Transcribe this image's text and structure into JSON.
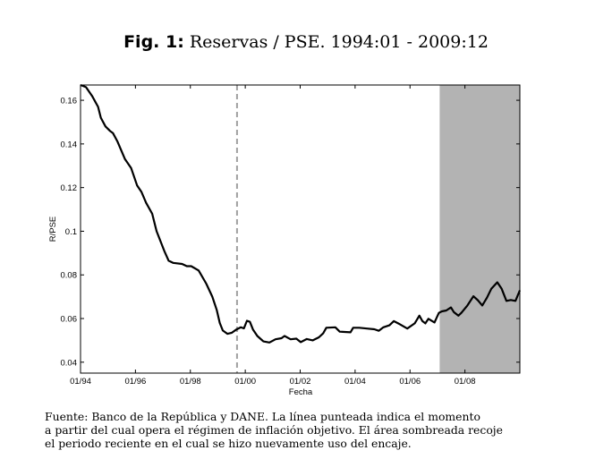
{
  "figure": {
    "label": "Fig. 1:",
    "title": "Reservas / PSE. 1994:01 - 2009:12"
  },
  "caption": {
    "lines": [
      "Fuente: Banco de la República y DANE. La línea punteada indica el momento",
      "a partir del cual opera el régimen de inflación objetivo. El área sombreada recoje",
      "el periodo reciente en el cual se hizo nuevamente uso del encaje."
    ]
  },
  "chart_data": {
    "type": "line",
    "title": "Reservas / PSE. 1994:01 - 2009:12",
    "xlabel": "Fecha",
    "ylabel": "R/PSE",
    "xlim": [
      1994.0,
      2010.0
    ],
    "ylim": [
      0.035,
      0.167
    ],
    "xticks": [
      1994,
      1996,
      1998,
      2000,
      2002,
      2004,
      2006,
      2008
    ],
    "xtick_labels": [
      "01/94",
      "01/96",
      "01/98",
      "01/00",
      "01/02",
      "01/04",
      "01/06",
      "01/08"
    ],
    "yticks": [
      0.04,
      0.06,
      0.08,
      0.1,
      0.12,
      0.14,
      0.16
    ],
    "ytick_labels": [
      "0.04",
      "0.06",
      "0.08",
      "0.1",
      "0.12",
      "0.14",
      "0.16"
    ],
    "grid": false,
    "colors": {
      "line": "#000000",
      "shade": "#b3b3b3",
      "dashed": "#a0a0a0"
    },
    "annotations": {
      "dashed_vline_x": 1999.7,
      "shaded_region_x": [
        2007.08,
        2010.0
      ]
    },
    "series": [
      {
        "name": "R/PSE",
        "x": [
          1994.0,
          1994.2,
          1994.42,
          1994.64,
          1994.74,
          1994.91,
          1995.07,
          1995.18,
          1995.35,
          1995.62,
          1995.84,
          1996.06,
          1996.22,
          1996.39,
          1996.61,
          1996.77,
          1997.05,
          1997.21,
          1997.37,
          1997.7,
          1997.87,
          1998.03,
          1998.3,
          1998.58,
          1998.8,
          1998.96,
          1999.07,
          1999.18,
          1999.35,
          1999.51,
          1999.68,
          1999.84,
          1999.95,
          2000.06,
          2000.17,
          2000.28,
          2000.44,
          2000.66,
          2000.88,
          2001.1,
          2001.32,
          2001.43,
          2001.65,
          2001.86,
          2002.02,
          2002.24,
          2002.46,
          2002.68,
          2002.84,
          2002.95,
          2003.28,
          2003.44,
          2003.83,
          2003.93,
          2004.15,
          2004.43,
          2004.7,
          2004.86,
          2005.03,
          2005.25,
          2005.41,
          2005.63,
          2005.9,
          2006.17,
          2006.34,
          2006.45,
          2006.56,
          2006.67,
          2006.89,
          2007.05,
          2007.16,
          2007.32,
          2007.49,
          2007.6,
          2007.76,
          2007.87,
          2008.09,
          2008.31,
          2008.47,
          2008.63,
          2008.8,
          2008.96,
          2009.18,
          2009.34,
          2009.51,
          2009.67,
          2009.84,
          2010.0
        ],
        "values": [
          0.167,
          0.166,
          0.162,
          0.157,
          0.152,
          0.148,
          0.146,
          0.145,
          0.141,
          0.133,
          0.129,
          0.121,
          0.118,
          0.113,
          0.108,
          0.1,
          0.091,
          0.0865,
          0.0855,
          0.085,
          0.084,
          0.084,
          0.082,
          0.076,
          0.07,
          0.064,
          0.058,
          0.0545,
          0.053,
          0.0535,
          0.055,
          0.056,
          0.0555,
          0.059,
          0.0585,
          0.055,
          0.052,
          0.0495,
          0.049,
          0.0505,
          0.051,
          0.052,
          0.0505,
          0.0508,
          0.0492,
          0.0506,
          0.05,
          0.0514,
          0.0533,
          0.0558,
          0.056,
          0.054,
          0.0537,
          0.0558,
          0.0558,
          0.0554,
          0.0551,
          0.0544,
          0.056,
          0.0569,
          0.0588,
          0.0574,
          0.0554,
          0.0578,
          0.0613,
          0.0588,
          0.0578,
          0.0599,
          0.0582,
          0.0626,
          0.0633,
          0.0637,
          0.0651,
          0.0629,
          0.0613,
          0.0626,
          0.066,
          0.0702,
          0.0684,
          0.066,
          0.0695,
          0.0736,
          0.0766,
          0.0736,
          0.0681,
          0.0685,
          0.0681,
          0.0729
        ]
      }
    ]
  }
}
